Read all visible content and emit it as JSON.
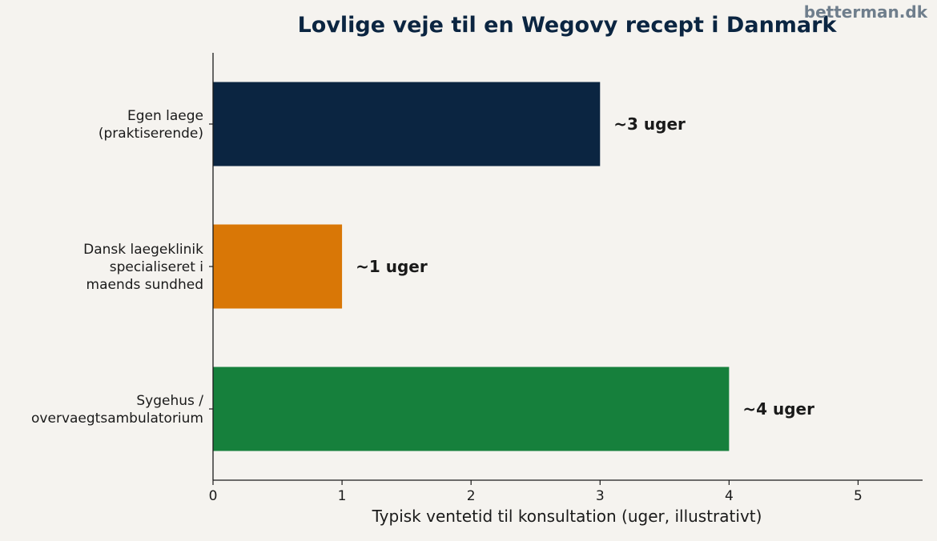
{
  "watermark": "betterman.dk",
  "chart_data": {
    "type": "bar",
    "orientation": "horizontal",
    "title": "Lovlige veje til en Wegovy recept i Danmark",
    "xlabel": "Typisk ventetid til konsultation (uger, illustrativt)",
    "ylabel": "",
    "xlim": [
      0,
      5.5
    ],
    "xticks": [
      0,
      1,
      2,
      3,
      4,
      5
    ],
    "grid": false,
    "categories": [
      [
        "Egen laege",
        "(praktiserende)"
      ],
      [
        "Dansk laegeklinik",
        "specialiseret i",
        "maends sundhed"
      ],
      [
        "Sygehus /",
        "overvaegtsambulatorium"
      ]
    ],
    "values": [
      3,
      1,
      4
    ],
    "data_labels": [
      "~3 uger",
      "~1 uger",
      "~4 uger"
    ],
    "colors": [
      "#0b2541",
      "#d97706",
      "#16803c"
    ]
  }
}
